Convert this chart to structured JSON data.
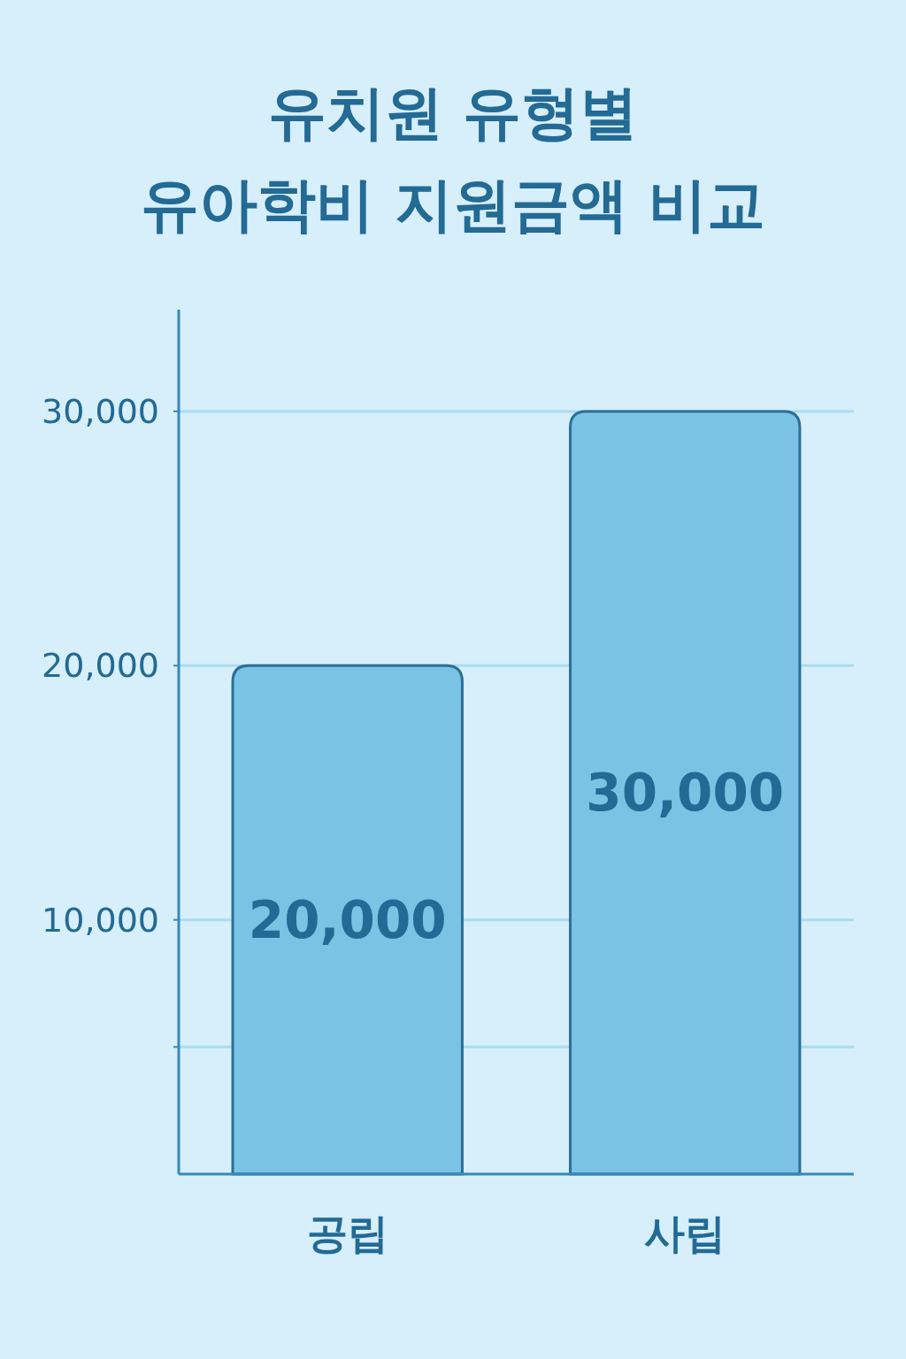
{
  "chart_data": {
    "type": "bar",
    "title": "유치원 유형별\n유아학비 지원금액 비교",
    "categories": [
      "공립",
      "사립"
    ],
    "values": [
      20000,
      30000
    ],
    "color": "#7ac3e4",
    "ylim": [
      0,
      34000
    ],
    "yticks": [
      {
        "value": 5000,
        "label": null
      },
      {
        "value": 10000,
        "label": "10,000"
      },
      {
        "value": 20000,
        "label": "20,000"
      },
      {
        "value": 30000,
        "label": "30,000"
      }
    ],
    "grid": "y",
    "value_labels": [
      "20,000",
      "30,000"
    ]
  }
}
